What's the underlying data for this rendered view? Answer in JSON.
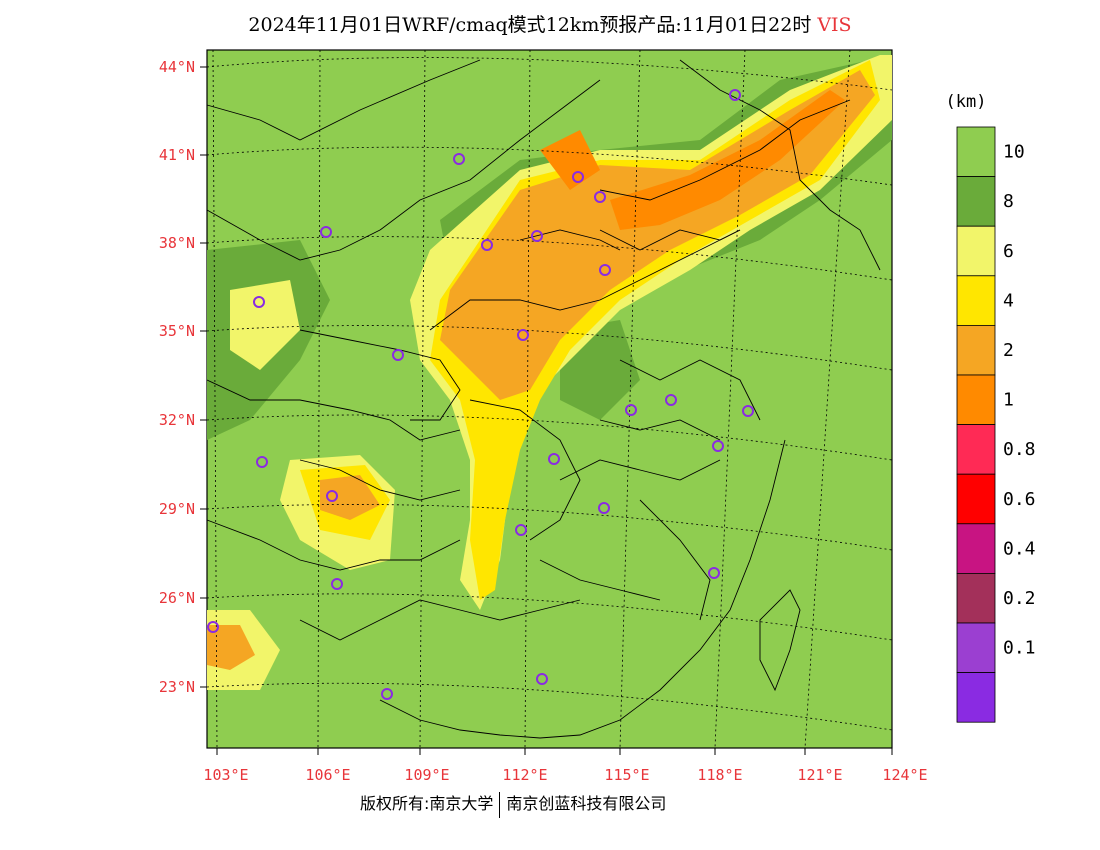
{
  "title": {
    "main": "2024年11月01日WRF/cmaq模式12km预报产品:11月01日22时",
    "variable": "VIS"
  },
  "colorbar": {
    "unit": "(km)",
    "levels": [
      {
        "label": "10",
        "color": "#8fcd50"
      },
      {
        "label": "8",
        "color": "#6aab3a"
      },
      {
        "label": "6",
        "color": "#f2f56a"
      },
      {
        "label": "4",
        "color": "#ffe600"
      },
      {
        "label": "2",
        "color": "#f5a623"
      },
      {
        "label": "1",
        "color": "#ff8a00"
      },
      {
        "label": "0.8",
        "color": "#ff2a55"
      },
      {
        "label": "0.6",
        "color": "#ff0000"
      },
      {
        "label": "0.4",
        "color": "#c81482"
      },
      {
        "label": "0.2",
        "color": "#a3305a"
      },
      {
        "label": "0.1",
        "color": "#9b3fd1"
      },
      {
        "label": "",
        "color": "#8a2be2"
      }
    ]
  },
  "axes": {
    "lat_labels": [
      "44°N",
      "41°N",
      "38°N",
      "35°N",
      "32°N",
      "29°N",
      "26°N",
      "23°N"
    ],
    "lon_labels": [
      "103°E",
      "106°E",
      "109°E",
      "112°E",
      "115°E",
      "118°E",
      "121°E",
      "124°E"
    ],
    "label_color": "#e8353a"
  },
  "stations_count_note": "",
  "footer": {
    "left": "版权所有:南京大学",
    "right": "南京创蓝科技有限公司"
  }
}
